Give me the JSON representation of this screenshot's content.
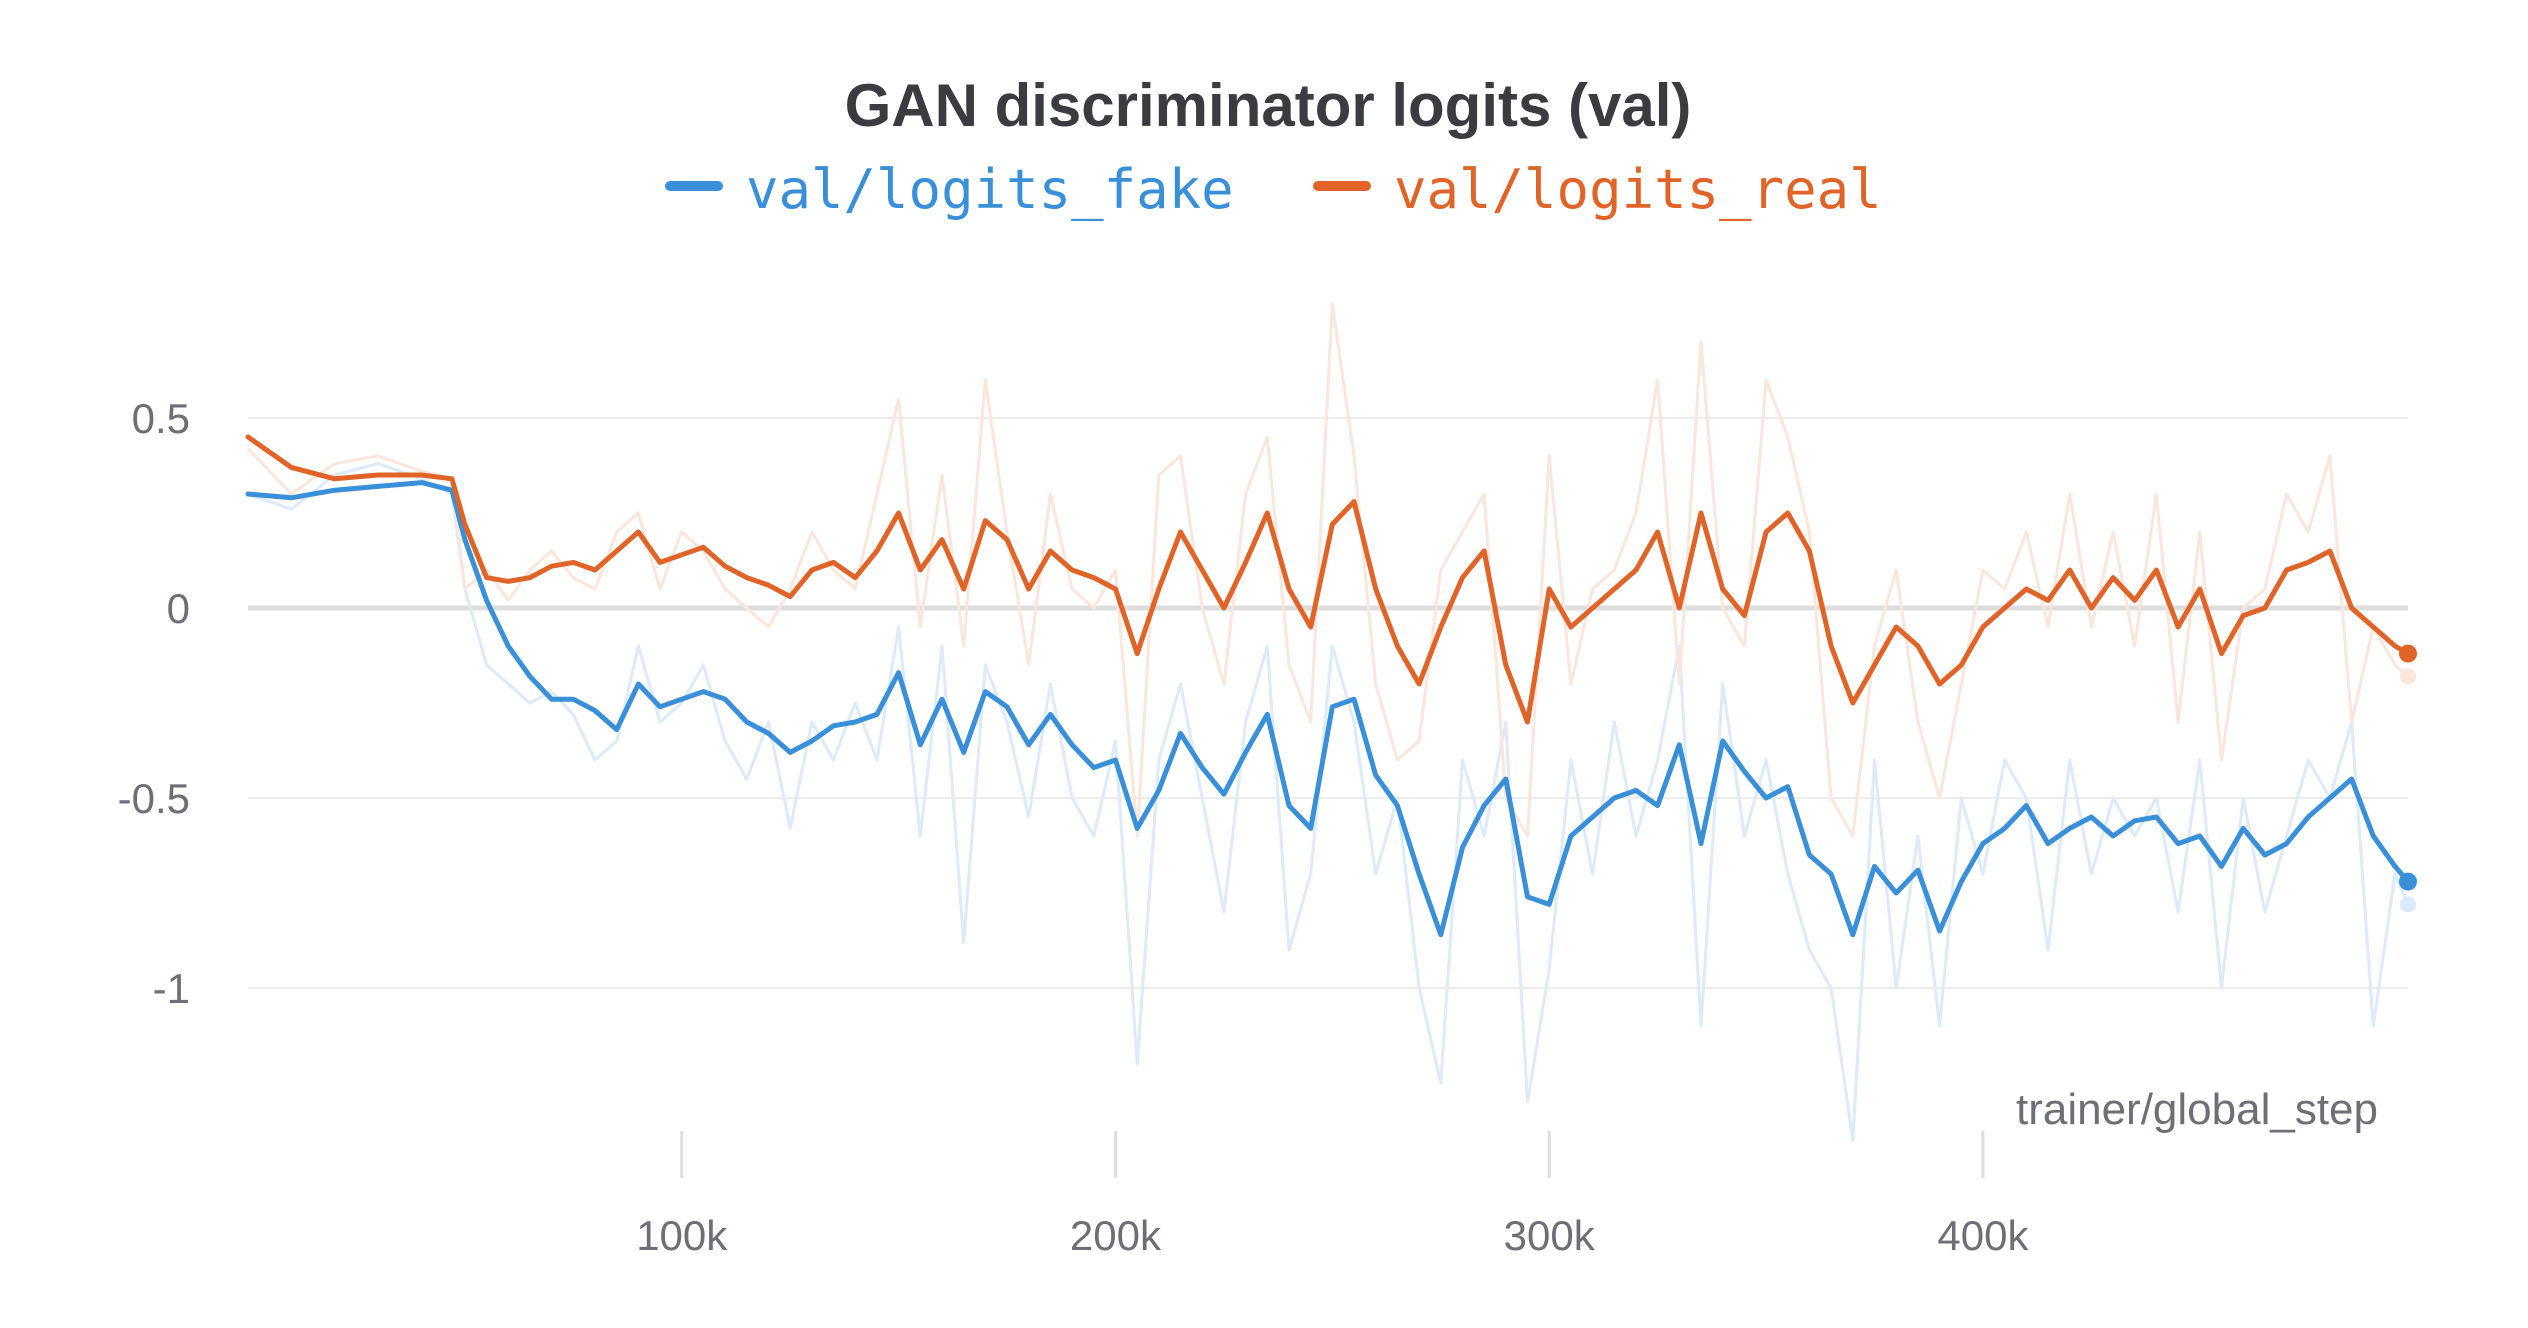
{
  "chart_data": {
    "type": "line",
    "title": "GAN discriminator logits (val)",
    "xlabel": "trainer/global_step",
    "ylabel": "",
    "xlim": [
      0,
      498000
    ],
    "ylim": [
      -1.35,
      0.95
    ],
    "x_ticks": [
      100000,
      200000,
      300000,
      400000
    ],
    "x_tick_labels": [
      "100k",
      "200k",
      "300k",
      "400k"
    ],
    "y_ticks": [
      0.5,
      0,
      -0.5,
      -1
    ],
    "y_tick_labels": [
      "0.5",
      "0",
      "-0.5",
      "-1"
    ],
    "grid": true,
    "legend_position": "top-center",
    "smoothing": "smoothed line drawn over faint raw values",
    "x": [
      0,
      10000,
      20000,
      30000,
      40000,
      47000,
      50000,
      55000,
      60000,
      65000,
      70000,
      75000,
      80000,
      85000,
      90000,
      95000,
      100000,
      105000,
      110000,
      115000,
      120000,
      125000,
      130000,
      135000,
      140000,
      145000,
      150000,
      155000,
      160000,
      165000,
      170000,
      175000,
      180000,
      185000,
      190000,
      195000,
      200000,
      205000,
      210000,
      215000,
      220000,
      225000,
      230000,
      235000,
      240000,
      245000,
      250000,
      255000,
      260000,
      265000,
      270000,
      275000,
      280000,
      285000,
      290000,
      295000,
      300000,
      305000,
      310000,
      315000,
      320000,
      325000,
      330000,
      335000,
      340000,
      345000,
      350000,
      355000,
      360000,
      365000,
      370000,
      375000,
      380000,
      385000,
      390000,
      395000,
      400000,
      405000,
      410000,
      415000,
      420000,
      425000,
      430000,
      435000,
      440000,
      445000,
      450000,
      455000,
      460000,
      465000,
      470000,
      475000,
      480000,
      485000,
      490000,
      495000,
      498000
    ],
    "series": [
      {
        "name": "val/logits_fake",
        "color": "#3a8fd9",
        "raw_color": "#dceaf9",
        "values": [
          0.3,
          0.29,
          0.31,
          0.32,
          0.33,
          0.31,
          0.18,
          0.02,
          -0.1,
          -0.18,
          -0.24,
          -0.24,
          -0.27,
          -0.32,
          -0.2,
          -0.26,
          -0.24,
          -0.22,
          -0.24,
          -0.3,
          -0.33,
          -0.38,
          -0.35,
          -0.31,
          -0.3,
          -0.28,
          -0.17,
          -0.36,
          -0.24,
          -0.38,
          -0.22,
          -0.26,
          -0.36,
          -0.28,
          -0.36,
          -0.42,
          -0.4,
          -0.58,
          -0.48,
          -0.33,
          -0.42,
          -0.49,
          -0.38,
          -0.28,
          -0.52,
          -0.58,
          -0.26,
          -0.24,
          -0.44,
          -0.52,
          -0.7,
          -0.86,
          -0.63,
          -0.52,
          -0.45,
          -0.76,
          -0.78,
          -0.6,
          -0.55,
          -0.5,
          -0.48,
          -0.52,
          -0.36,
          -0.62,
          -0.35,
          -0.43,
          -0.5,
          -0.47,
          -0.65,
          -0.7,
          -0.86,
          -0.68,
          -0.75,
          -0.69,
          -0.85,
          -0.72,
          -0.62,
          -0.58,
          -0.52,
          -0.62,
          -0.58,
          -0.55,
          -0.6,
          -0.56,
          -0.55,
          -0.62,
          -0.6,
          -0.68,
          -0.58,
          -0.65,
          -0.62,
          -0.55,
          -0.5,
          -0.45,
          -0.6,
          -0.68,
          -0.72
        ],
        "raw_values": [
          0.3,
          0.26,
          0.35,
          0.38,
          0.34,
          0.3,
          0.05,
          -0.15,
          -0.2,
          -0.25,
          -0.22,
          -0.28,
          -0.4,
          -0.35,
          -0.1,
          -0.3,
          -0.25,
          -0.15,
          -0.35,
          -0.45,
          -0.3,
          -0.58,
          -0.3,
          -0.4,
          -0.25,
          -0.4,
          -0.05,
          -0.6,
          -0.1,
          -0.88,
          -0.15,
          -0.3,
          -0.55,
          -0.2,
          -0.5,
          -0.6,
          -0.35,
          -1.2,
          -0.4,
          -0.2,
          -0.5,
          -0.8,
          -0.3,
          -0.1,
          -0.9,
          -0.7,
          -0.1,
          -0.3,
          -0.7,
          -0.5,
          -1.0,
          -1.25,
          -0.4,
          -0.6,
          -0.3,
          -1.3,
          -0.95,
          -0.4,
          -0.7,
          -0.3,
          -0.6,
          -0.4,
          -0.1,
          -1.1,
          -0.2,
          -0.6,
          -0.4,
          -0.7,
          -0.9,
          -1.0,
          -1.4,
          -0.4,
          -1.0,
          -0.6,
          -1.1,
          -0.5,
          -0.7,
          -0.4,
          -0.5,
          -0.9,
          -0.4,
          -0.7,
          -0.5,
          -0.6,
          -0.5,
          -0.8,
          -0.4,
          -1.0,
          -0.5,
          -0.8,
          -0.6,
          -0.4,
          -0.5,
          -0.3,
          -1.1,
          -0.7,
          -0.78
        ]
      },
      {
        "name": "val/logits_real",
        "color": "#e06428",
        "raw_color": "#fbe6dc",
        "values": [
          0.45,
          0.37,
          0.34,
          0.35,
          0.35,
          0.34,
          0.22,
          0.08,
          0.07,
          0.08,
          0.11,
          0.12,
          0.1,
          0.15,
          0.2,
          0.12,
          0.14,
          0.16,
          0.11,
          0.08,
          0.06,
          0.03,
          0.1,
          0.12,
          0.08,
          0.15,
          0.25,
          0.1,
          0.18,
          0.05,
          0.23,
          0.18,
          0.05,
          0.15,
          0.1,
          0.08,
          0.05,
          -0.12,
          0.05,
          0.2,
          0.1,
          0.0,
          0.12,
          0.25,
          0.05,
          -0.05,
          0.22,
          0.28,
          0.05,
          -0.1,
          -0.2,
          -0.05,
          0.08,
          0.15,
          -0.15,
          -0.3,
          0.05,
          -0.05,
          0.0,
          0.05,
          0.1,
          0.2,
          0.0,
          0.25,
          0.05,
          -0.02,
          0.2,
          0.25,
          0.15,
          -0.1,
          -0.25,
          -0.15,
          -0.05,
          -0.1,
          -0.2,
          -0.15,
          -0.05,
          0.0,
          0.05,
          0.02,
          0.1,
          0.0,
          0.08,
          0.02,
          0.1,
          -0.05,
          0.05,
          -0.12,
          -0.02,
          0.0,
          0.1,
          0.12,
          0.15,
          0.0,
          -0.05,
          -0.1,
          -0.12
        ],
        "raw_values": [
          0.42,
          0.3,
          0.38,
          0.4,
          0.36,
          0.34,
          0.05,
          0.1,
          0.02,
          0.1,
          0.15,
          0.08,
          0.05,
          0.2,
          0.25,
          0.05,
          0.2,
          0.15,
          0.05,
          0.0,
          -0.05,
          0.05,
          0.2,
          0.1,
          0.05,
          0.3,
          0.55,
          -0.05,
          0.35,
          -0.1,
          0.6,
          0.2,
          -0.15,
          0.3,
          0.05,
          0.0,
          0.1,
          -0.6,
          0.35,
          0.4,
          0.0,
          -0.2,
          0.3,
          0.45,
          -0.15,
          -0.3,
          0.8,
          0.4,
          -0.2,
          -0.4,
          -0.35,
          0.1,
          0.2,
          0.3,
          -0.5,
          -0.6,
          0.4,
          -0.2,
          0.05,
          0.1,
          0.25,
          0.6,
          -0.2,
          0.7,
          0.0,
          -0.1,
          0.6,
          0.45,
          0.2,
          -0.5,
          -0.6,
          -0.1,
          0.1,
          -0.3,
          -0.5,
          -0.2,
          0.1,
          0.05,
          0.2,
          -0.05,
          0.3,
          -0.05,
          0.2,
          -0.1,
          0.3,
          -0.3,
          0.2,
          -0.4,
          0.0,
          0.05,
          0.3,
          0.2,
          0.4,
          -0.3,
          -0.05,
          -0.15,
          -0.18
        ]
      }
    ]
  }
}
